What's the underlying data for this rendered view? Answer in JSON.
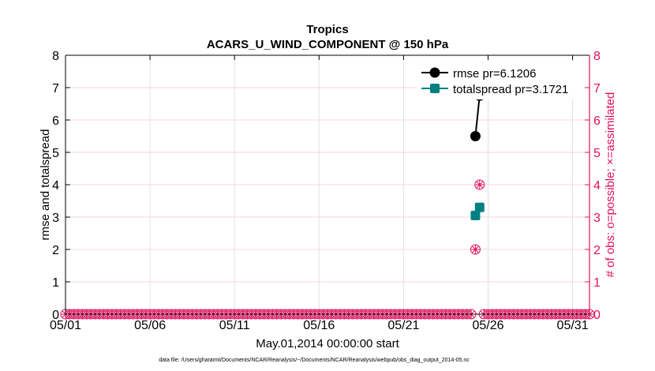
{
  "chart_data": {
    "type": "line",
    "title": "Tropics",
    "subtitle": "ACARS_U_WIND_COMPONENT @ 150 hPa",
    "xlabel": "May.01,2014 00:00:00 start",
    "ylabel": "rmse and totalspread",
    "y2label": "# of obs: o=possible; ×=assimilated",
    "footnote": "data file: /Users/gharamti/Documents/NCAR/Reanalysis/~/Documents/NCAR/Reanalysis/webpub/obs_diag_output_2014-05.nc",
    "xlim_days": [
      0,
      31
    ],
    "ylim": [
      0,
      8
    ],
    "y2lim": [
      0,
      8
    ],
    "x_ticks": [
      {
        "day": 0,
        "label": "05/01"
      },
      {
        "day": 5,
        "label": "05/06"
      },
      {
        "day": 10,
        "label": "05/11"
      },
      {
        "day": 15,
        "label": "05/16"
      },
      {
        "day": 20,
        "label": "05/21"
      },
      {
        "day": 25,
        "label": "05/26"
      },
      {
        "day": 30,
        "label": "05/31"
      }
    ],
    "y_ticks": [
      "0",
      "1",
      "2",
      "3",
      "4",
      "5",
      "6",
      "7",
      "8"
    ],
    "grid": true,
    "legend_position": "top-right",
    "series": [
      {
        "name": "rmse pr=6.1206",
        "color": "#000000",
        "x_days": [
          24.25,
          24.5
        ],
        "values": [
          5.5,
          6.75
        ]
      },
      {
        "name": "totalspread pr=3.1721",
        "color": "#008080",
        "x_days": [
          24.25,
          24.5
        ],
        "values": [
          3.05,
          3.3
        ]
      }
    ],
    "obs_counts": {
      "color": "#e0105a",
      "interval_days": 0.25,
      "nonzero": [
        {
          "x_day": 24.25,
          "possible": 2,
          "assimilated": 2
        },
        {
          "x_day": 24.5,
          "possible": 4,
          "assimilated": 4
        }
      ],
      "default": 0
    }
  }
}
